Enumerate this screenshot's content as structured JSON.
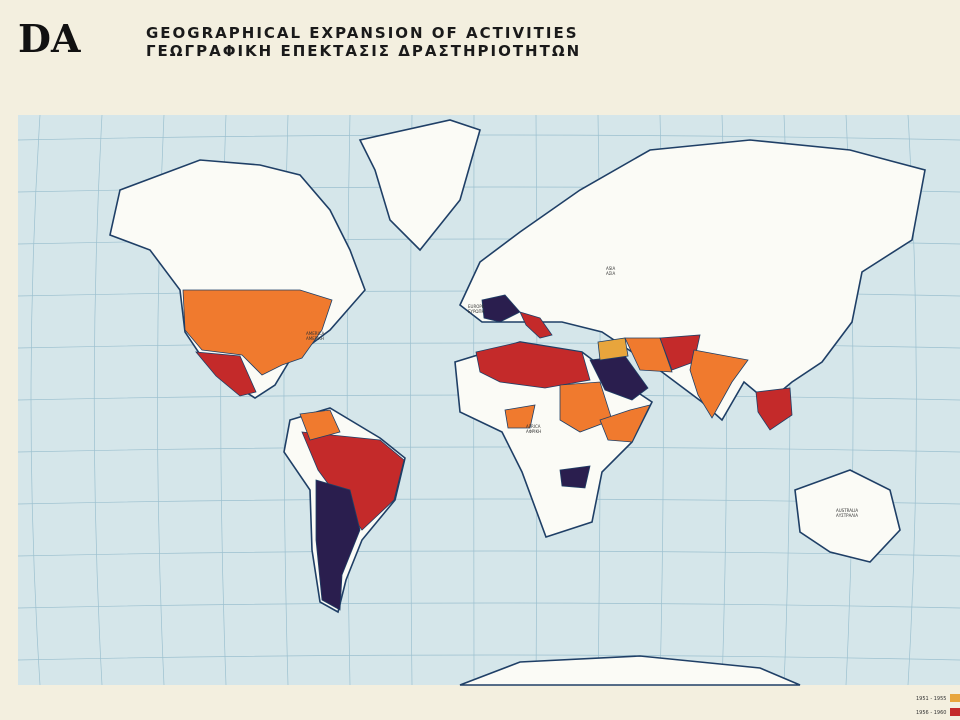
{
  "header": {
    "logo": "DA",
    "title_en": "GEOGRAPHICAL  EXPANSION  OF  ACTIVITIES",
    "title_gr": "ΓΕΩΓΡΑΦΙΚΗ  ΕΠΕΚΤΑΣΙΣ  ΔΡΑΣΤΗΡΙΟΤΗΤΩΝ"
  },
  "regions": [
    {
      "en": "EUROPE",
      "gr": "ΕΥΡΩΠΗ"
    },
    {
      "en": "AMERICA",
      "gr": "ΑΜΕΡΙΚΗ"
    },
    {
      "en": "AFRICA",
      "gr": "ΑΦΡΙΚΗ"
    },
    {
      "en": "ASIA",
      "gr": "ΑΣΙΑ"
    },
    {
      "en": "AUSTRALIA",
      "gr": "ΑΥΣΤΡΑΛΙΑ"
    }
  ],
  "legend": [
    {
      "label": "1951 - 1955",
      "color": "#e8a53c"
    },
    {
      "label": "1956 - 1960",
      "color": "#c42a2a"
    }
  ]
}
